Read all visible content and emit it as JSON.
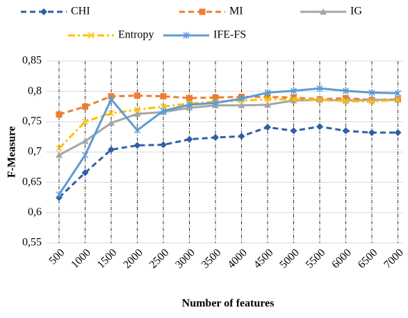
{
  "chart_data": {
    "type": "line",
    "y_label": "F-Measure",
    "x_label": "Number of features",
    "categories": [
      "500",
      "1000",
      "1500",
      "2000",
      "2500",
      "3000",
      "3500",
      "4000",
      "4500",
      "5000",
      "5500",
      "6000",
      "6500",
      "7000"
    ],
    "ylim": [
      0.55,
      0.85
    ],
    "yticks": [
      {
        "value": 0.55,
        "label": "0,55"
      },
      {
        "value": 0.6,
        "label": "0,6"
      },
      {
        "value": 0.65,
        "label": "0,65"
      },
      {
        "value": 0.7,
        "label": "0,7"
      },
      {
        "value": 0.75,
        "label": "0,75"
      },
      {
        "value": 0.8,
        "label": "0,8"
      },
      {
        "value": 0.85,
        "label": "0,85"
      }
    ],
    "grid": true,
    "x_grid": true,
    "legend": "top",
    "series": [
      {
        "name": "CHI",
        "color": "#2e5fa3",
        "line_style": "dashed",
        "marker": "diamond",
        "values": [
          0.625,
          0.666,
          0.704,
          0.711,
          0.712,
          0.721,
          0.724,
          0.726,
          0.741,
          0.735,
          0.742,
          0.735,
          0.732,
          0.732
        ]
      },
      {
        "name": "MI",
        "color": "#ed7d31",
        "line_style": "dashed",
        "marker": "square",
        "values": [
          0.762,
          0.775,
          0.792,
          0.793,
          0.792,
          0.789,
          0.79,
          0.791,
          0.791,
          0.79,
          0.787,
          0.789,
          0.786,
          0.787
        ]
      },
      {
        "name": "IG",
        "color": "#a5a5a5",
        "line_style": "solid",
        "marker": "triangle",
        "values": [
          0.695,
          0.718,
          0.748,
          0.763,
          0.766,
          0.773,
          0.777,
          0.777,
          0.778,
          0.785,
          0.786,
          0.785,
          0.786,
          0.786
        ]
      },
      {
        "name": "Entropy",
        "color": "#ffc000",
        "line_style": "dashdot",
        "marker": "x",
        "values": [
          0.706,
          0.75,
          0.764,
          0.77,
          0.775,
          0.78,
          0.783,
          0.785,
          0.787,
          0.787,
          0.786,
          0.784,
          0.783,
          0.786
        ]
      },
      {
        "name": "IFE-FS",
        "color": "#5b9bd5",
        "line_style": "solid",
        "marker": "star",
        "values": [
          0.63,
          0.695,
          0.787,
          0.736,
          0.768,
          0.778,
          0.781,
          0.788,
          0.798,
          0.801,
          0.805,
          0.801,
          0.798,
          0.797
        ]
      }
    ]
  }
}
